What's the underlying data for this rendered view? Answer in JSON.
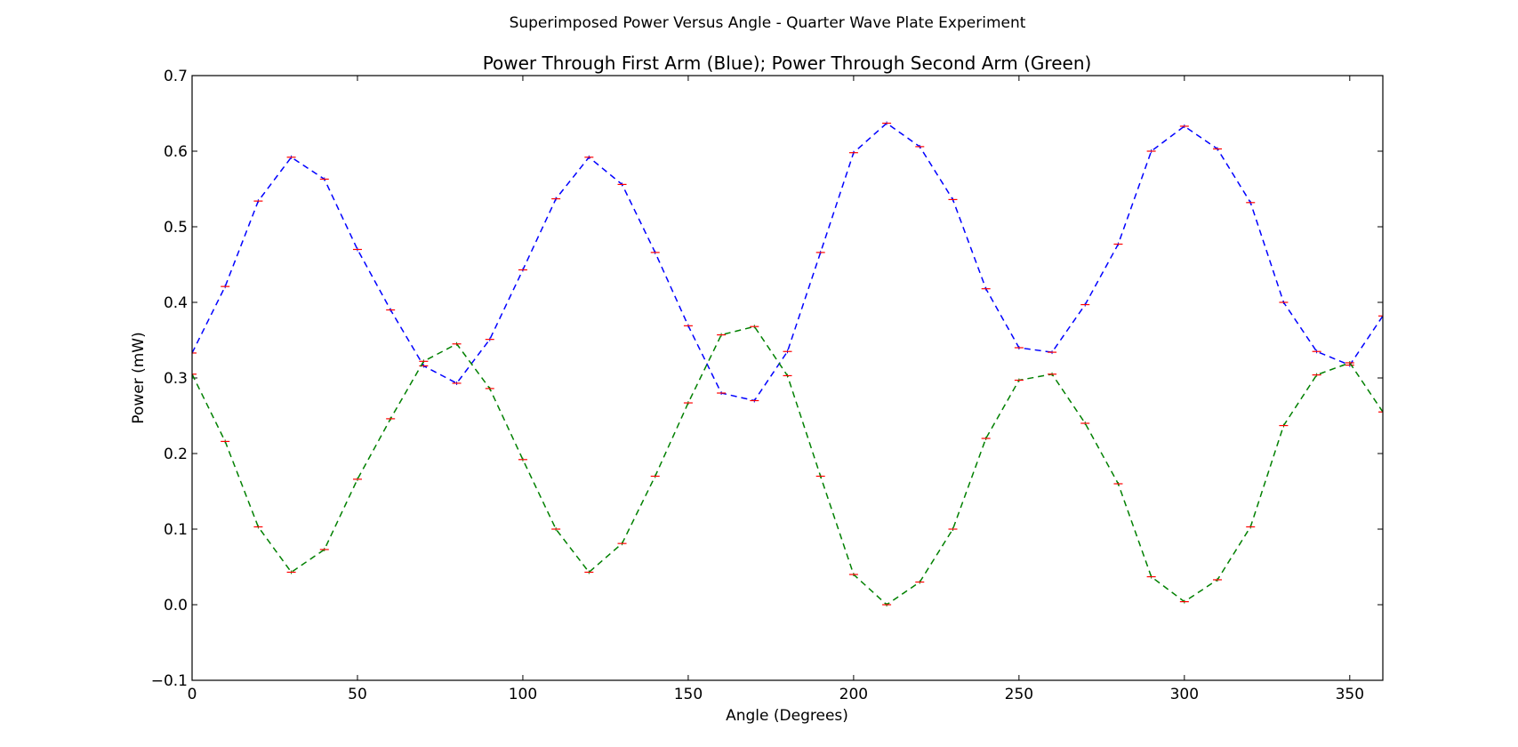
{
  "chart_data": {
    "type": "line",
    "suptitle": "Superimposed Power Versus Angle - Quarter Wave Plate Experiment",
    "title": "Power Through First Arm (Blue); Power Through Second Arm (Green)",
    "xlabel": "Angle (Degrees)",
    "ylabel": "Power (mW)",
    "xlim": [
      0,
      360
    ],
    "ylim": [
      -0.1,
      0.7
    ],
    "xticks": [
      0,
      50,
      100,
      150,
      200,
      250,
      300,
      350
    ],
    "yticks": [
      -0.1,
      0.0,
      0.1,
      0.2,
      0.3,
      0.4,
      0.5,
      0.6,
      0.7
    ],
    "ytick_labels": [
      "−0.1",
      "0.0",
      "0.1",
      "0.2",
      "0.3",
      "0.4",
      "0.5",
      "0.6",
      "0.7"
    ],
    "grid": false,
    "x": [
      0,
      10,
      20,
      30,
      40,
      50,
      60,
      70,
      80,
      90,
      100,
      110,
      120,
      130,
      140,
      150,
      160,
      170,
      180,
      190,
      200,
      210,
      220,
      230,
      240,
      250,
      260,
      270,
      280,
      290,
      300,
      310,
      320,
      330,
      340,
      350,
      360
    ],
    "series": [
      {
        "color": "#0000ff",
        "linestyle": "dashed",
        "errorbar_color": "#ff0000",
        "values": [
          0.333,
          0.421,
          0.534,
          0.592,
          0.563,
          0.47,
          0.39,
          0.316,
          0.293,
          0.351,
          0.443,
          0.537,
          0.592,
          0.556,
          0.466,
          0.369,
          0.28,
          0.27,
          0.335,
          0.466,
          0.598,
          0.637,
          0.606,
          0.536,
          0.418,
          0.34,
          0.334,
          0.397,
          0.477,
          0.6,
          0.633,
          0.603,
          0.532,
          0.4,
          0.335,
          0.317,
          0.382
        ]
      },
      {
        "color": "#008000",
        "linestyle": "dashed",
        "errorbar_color": "#ff0000",
        "values": [
          0.305,
          0.216,
          0.103,
          0.043,
          0.073,
          0.166,
          0.246,
          0.322,
          0.345,
          0.286,
          0.192,
          0.1,
          0.043,
          0.081,
          0.17,
          0.267,
          0.357,
          0.368,
          0.303,
          0.17,
          0.04,
          0.0,
          0.03,
          0.1,
          0.22,
          0.297,
          0.305,
          0.24,
          0.16,
          0.037,
          0.004,
          0.033,
          0.103,
          0.237,
          0.304,
          0.32,
          0.255
        ]
      }
    ]
  }
}
